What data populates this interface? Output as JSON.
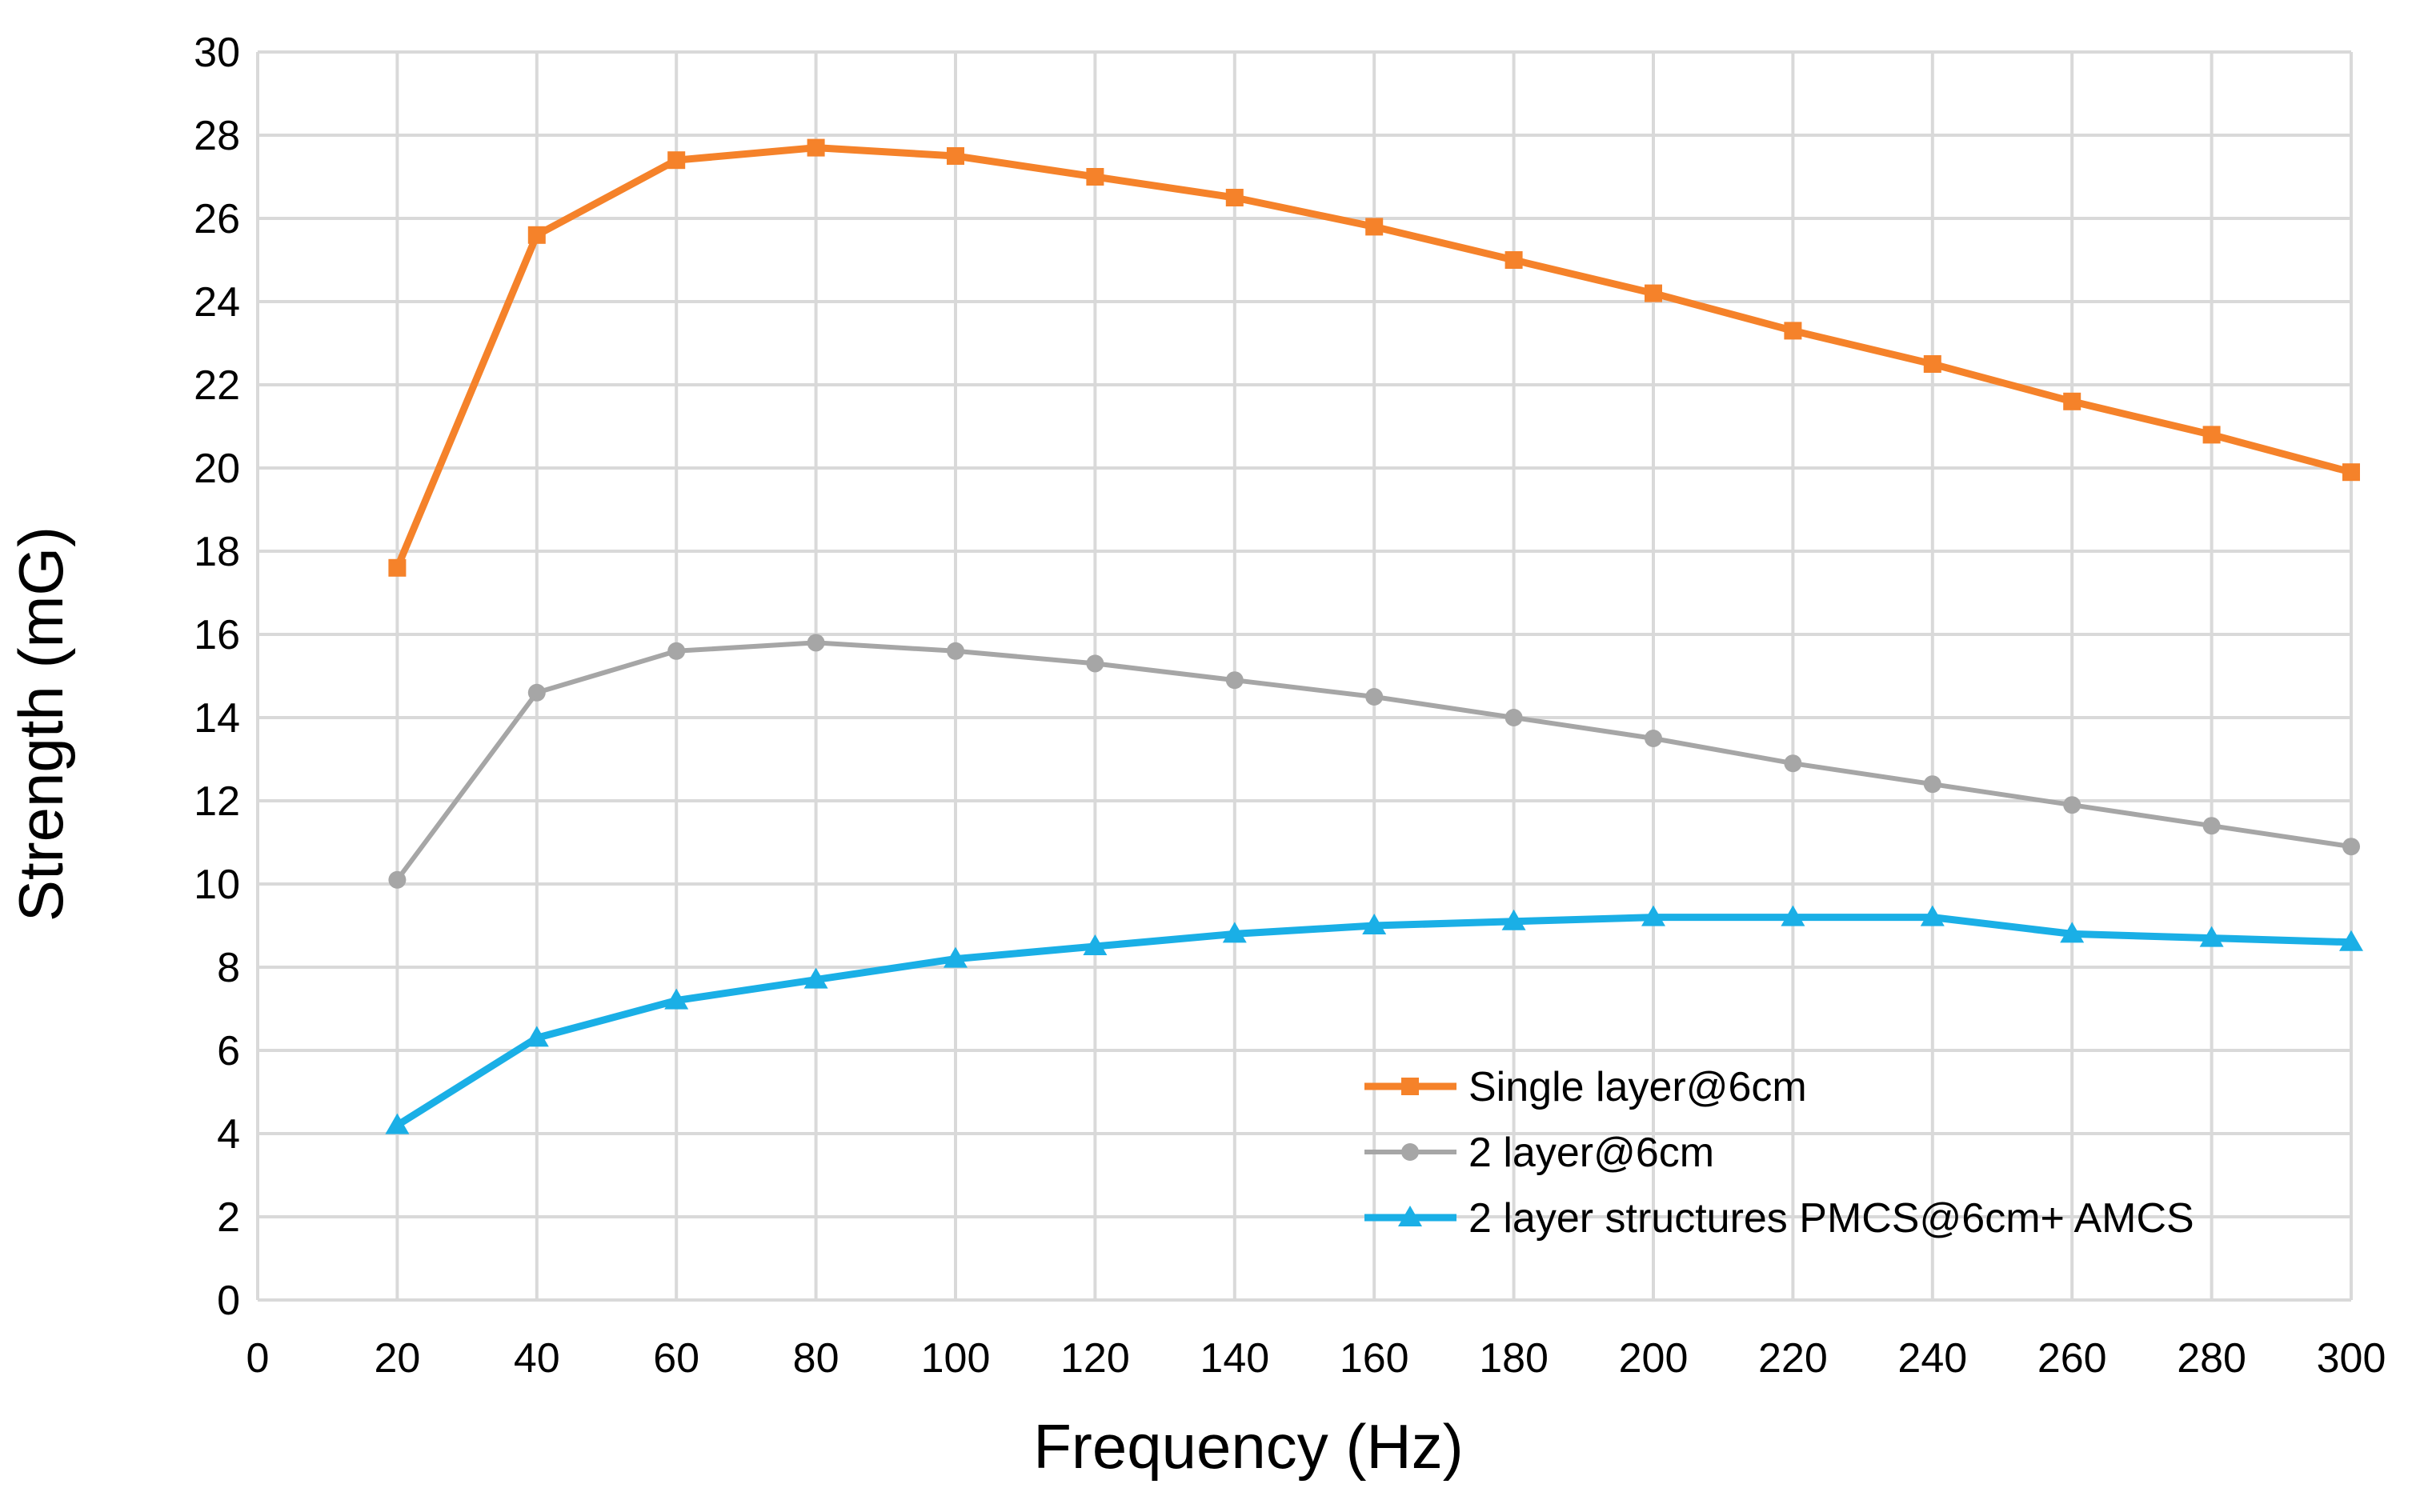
{
  "chart_data": {
    "type": "line",
    "title": "",
    "xlabel": "Frequency (Hz)",
    "ylabel": "Strength (mG)",
    "xlim": [
      0,
      300
    ],
    "ylim": [
      0,
      30
    ],
    "x_ticks": [
      0,
      20,
      40,
      60,
      80,
      100,
      120,
      140,
      160,
      180,
      200,
      220,
      240,
      260,
      280,
      300
    ],
    "y_ticks": [
      0,
      2,
      4,
      6,
      8,
      10,
      12,
      14,
      16,
      18,
      20,
      22,
      24,
      26,
      28,
      30
    ],
    "grid": true,
    "legend_position": "bottom-right",
    "x": [
      20,
      40,
      60,
      80,
      100,
      120,
      140,
      160,
      180,
      200,
      220,
      240,
      260,
      280,
      300
    ],
    "series": [
      {
        "name": "Single layer@6cm",
        "color": "#F5822A",
        "marker": "square",
        "values": [
          17.6,
          25.6,
          27.4,
          27.7,
          27.5,
          27.0,
          26.5,
          25.8,
          25.0,
          24.2,
          23.3,
          22.5,
          21.6,
          20.8,
          19.9
        ]
      },
      {
        "name": "2 layer@6cm",
        "color": "#A6A6A6",
        "marker": "circle",
        "values": [
          10.1,
          14.6,
          15.6,
          15.8,
          15.6,
          15.3,
          14.9,
          14.5,
          14.0,
          13.5,
          12.9,
          12.4,
          11.9,
          11.4,
          10.9
        ]
      },
      {
        "name": "2 layer structures PMCS@6cm+ AMCS",
        "color": "#1AAFE6",
        "marker": "triangle",
        "values": [
          4.2,
          6.3,
          7.2,
          7.7,
          8.2,
          8.5,
          8.8,
          9.0,
          9.1,
          9.2,
          9.2,
          9.2,
          8.8,
          8.7,
          8.6
        ]
      }
    ]
  }
}
